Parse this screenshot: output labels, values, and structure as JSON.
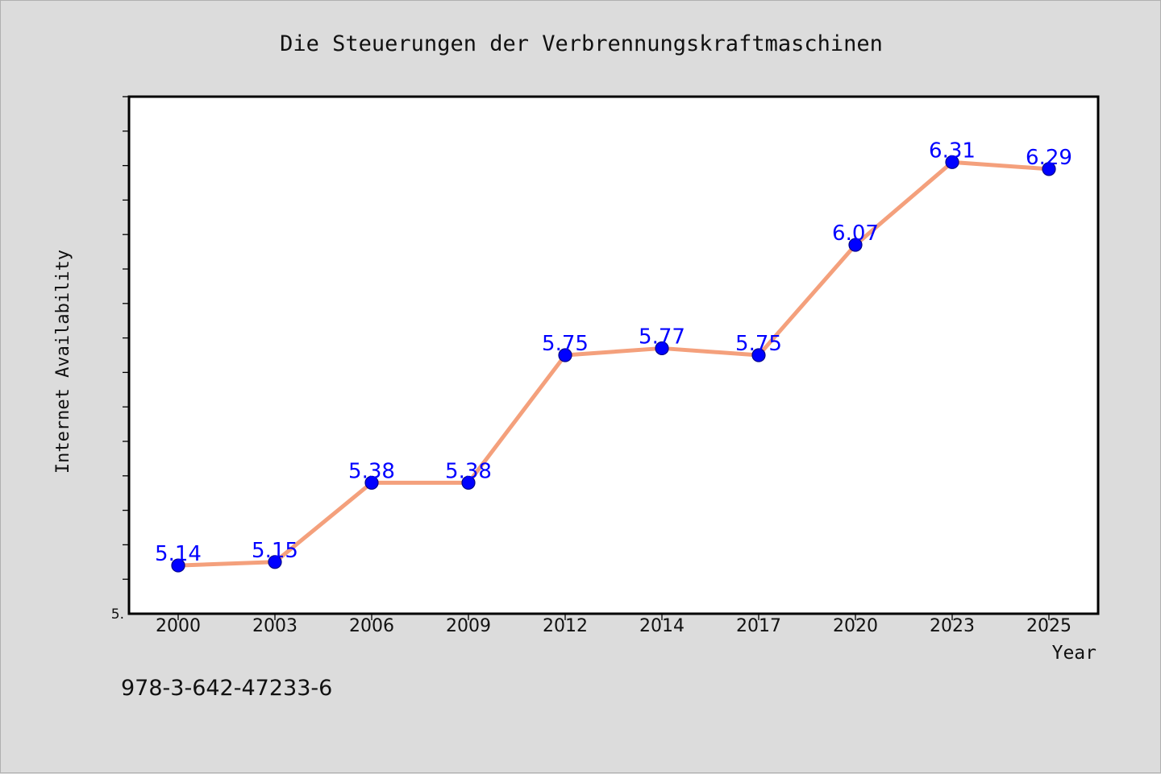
{
  "chart_data": {
    "type": "line",
    "title": "Die Steuerungen der Verbrennungskraftmaschinen",
    "xlabel": "Year",
    "ylabel": "Internet Availability",
    "categories": [
      "2000",
      "2003",
      "2006",
      "2009",
      "2012",
      "2014",
      "2017",
      "2020",
      "2023",
      "2025"
    ],
    "series": [
      {
        "values": [
          5.14,
          5.15,
          5.38,
          5.38,
          5.75,
          5.77,
          5.75,
          6.07,
          6.31,
          6.29
        ],
        "data_labels": [
          "5.14",
          "5.15",
          "5.38",
          "5.38",
          "5.75",
          "5.77",
          "5.75",
          "6.07",
          "6.31",
          "6.29"
        ]
      }
    ],
    "ylim": [
      5.0,
      6.5
    ],
    "y_tick_label": "5.",
    "grid": false,
    "legend": "none",
    "colors": {
      "line": "#f4a07c",
      "marker": "#0000ff",
      "marker_edge": "#00008b",
      "data_label": "#0000ff",
      "plot_background": "#ffffff",
      "figure_background": "#dcdcdc"
    }
  },
  "footer": {
    "isbn": "978-3-642-47233-6"
  }
}
